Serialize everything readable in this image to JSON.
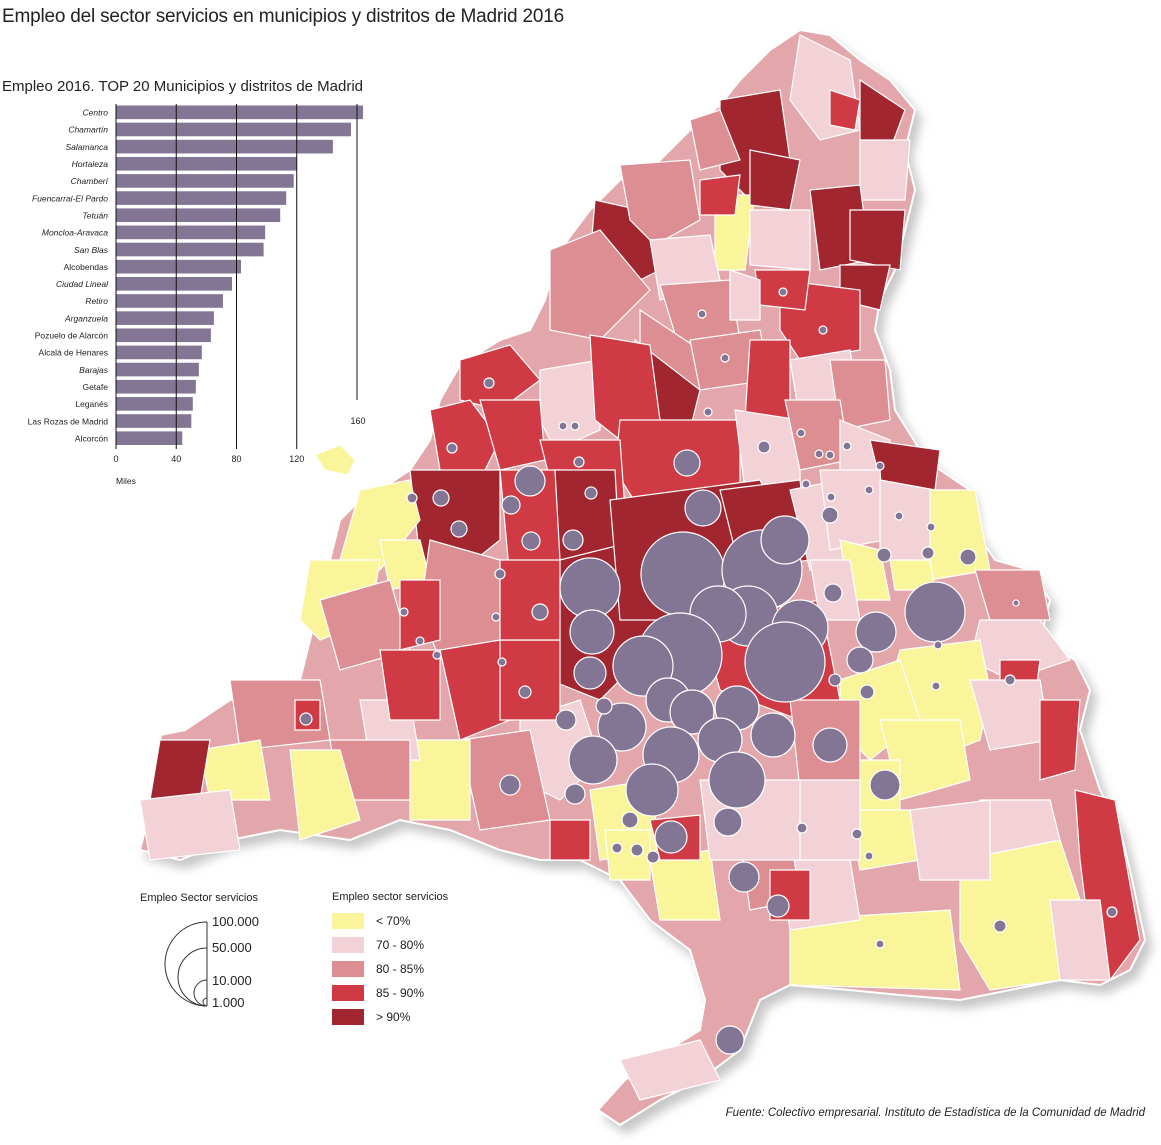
{
  "title": "Empleo del sector servicios en municipios y distritos de Madrid 2016",
  "chart_data": {
    "type": "bar",
    "title": "Empleo 2016. TOP 20 Municipios y distritos de Madrid",
    "orientation": "horizontal",
    "categories": [
      "Centro",
      "Chamartín",
      "Salamanca",
      "Hortaleza",
      "Chamberí",
      "Fuencarral-El Pardo",
      "Tetuán",
      "Moncloa-Aravaca",
      "San Blas",
      "Alcobendas",
      "Ciudad Lineal",
      "Retiro",
      "Arganzuela",
      "Pozuelo de Alarcón",
      "Alcalá de Henares",
      "Barajas",
      "Getafe",
      "Leganés",
      "Las Rozas de Madrid",
      "Alcorcón"
    ],
    "italic_categories": [
      "Centro",
      "Chamartín",
      "Salamanca",
      "Hortaleza",
      "Chamberí",
      "Fuencarral-El Pardo",
      "Tetuán",
      "Moncloa-Aravaca",
      "San Blas",
      "Ciudad Lineal",
      "Retiro",
      "Arganzuela",
      "Barajas"
    ],
    "values": [
      164,
      156,
      144,
      120,
      118,
      113,
      109,
      99,
      98,
      83,
      77,
      71,
      65,
      63,
      57,
      55,
      53,
      51,
      50,
      44
    ],
    "xticks": [
      0,
      40,
      80,
      120
    ],
    "xmax_label": "160",
    "xlim": [
      0,
      170
    ],
    "xlabel": "Miles",
    "bar_color": "#837695"
  },
  "legend_size": {
    "title": "Empleo Sector servicios",
    "entries": [
      {
        "label": "100.000",
        "value": 100000
      },
      {
        "label": "50.000",
        "value": 50000
      },
      {
        "label": "10.000",
        "value": 10000
      },
      {
        "label": "1.000",
        "value": 1000
      }
    ]
  },
  "legend_color": {
    "title": "Empleo sector servicios",
    "entries": [
      {
        "label": "< 70%",
        "color": "#faf59b"
      },
      {
        "label": "70 - 80%",
        "color": "#f2d2d6"
      },
      {
        "label": "80 - 85%",
        "color": "#dc8e92"
      },
      {
        "label": "85 - 90%",
        "color": "#cf3a44"
      },
      {
        "label": "> 90%",
        "color": "#a1262f"
      }
    ]
  },
  "circle_color": "#837695",
  "source": "Fuente: Colectivo empresarial. Instituto de Estadística de la Comunidad de Madrid"
}
